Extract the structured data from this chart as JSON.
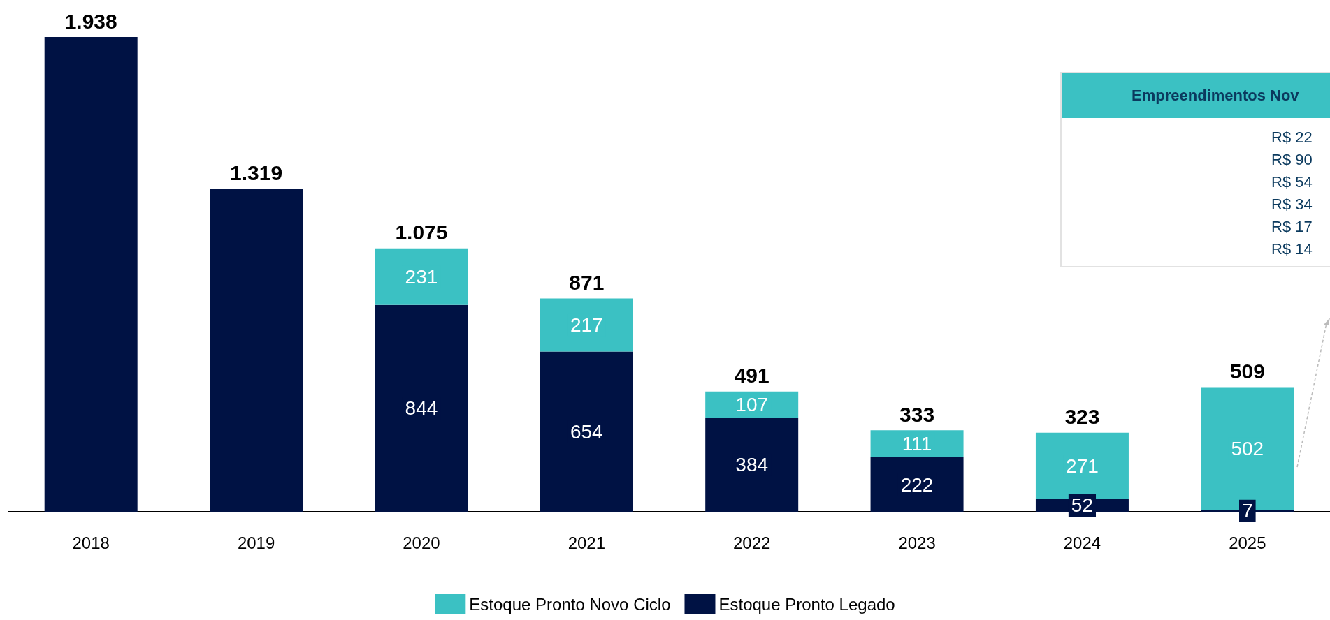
{
  "chart_data": {
    "type": "bar",
    "stacked": true,
    "legend": "bottom",
    "categories": [
      "2018",
      "2019",
      "2020",
      "2021",
      "2022",
      "2023",
      "2024",
      "2025"
    ],
    "series": [
      {
        "name": "Estoque Pronto Legado",
        "color": "#001244",
        "values": [
          1938,
          1319,
          844,
          654,
          384,
          222,
          52,
          7
        ],
        "value_labels": [
          null,
          null,
          "844",
          "654",
          "384",
          "222",
          "52",
          "7"
        ]
      },
      {
        "name": "Estoque Pronto Novo Ciclo",
        "color": "#3bc1c3",
        "values": [
          null,
          null,
          231,
          217,
          107,
          111,
          271,
          502
        ],
        "value_labels": [
          null,
          null,
          "231",
          "217",
          "107",
          "111",
          "271",
          "502"
        ]
      }
    ],
    "totals": [
      "1.938",
      "1.319",
      "1.075",
      "871",
      "491",
      "333",
      "323",
      "509"
    ],
    "annotations": [
      "Empreendimentos Nov",
      "R$ 22",
      "R$ 90",
      "R$ 54",
      "R$ 34",
      "R$ 17",
      "R$ 14"
    ]
  }
}
